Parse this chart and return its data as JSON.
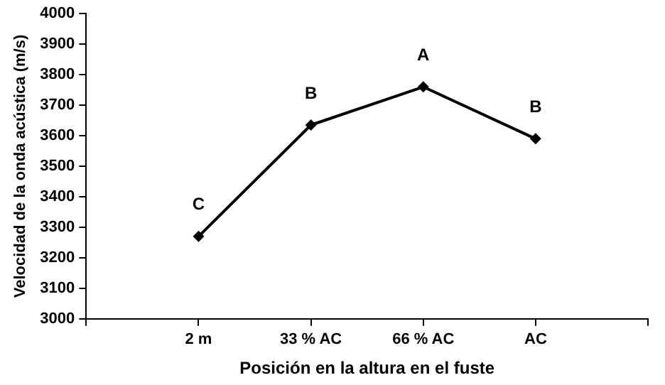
{
  "chart_data": {
    "type": "line",
    "xlabel": "Posición en la altura en el fuste",
    "ylabel": "Velocidad de la onda acústica (m/s)",
    "categories": [
      "2 m",
      "33 % AC",
      "66 % AC",
      "AC"
    ],
    "series": [
      {
        "color": "#000000",
        "values": [
          3270,
          3635,
          3760,
          3590
        ]
      }
    ],
    "ylim": [
      3000,
      4000
    ],
    "yticks": [
      3000,
      3100,
      3200,
      3300,
      3400,
      3500,
      3600,
      3700,
      3800,
      3900,
      4000
    ],
    "grid": false,
    "legend": false,
    "marker": "diamond",
    "line_style": "solid",
    "annotations": [
      {
        "text": "C",
        "x": "2 m",
        "y": 3270
      },
      {
        "text": "B",
        "x": "33 % AC",
        "y": 3635
      },
      {
        "text": "A",
        "x": "66 % AC",
        "y": 3760
      },
      {
        "text": "B",
        "x": "AC",
        "y": 3590
      }
    ]
  }
}
